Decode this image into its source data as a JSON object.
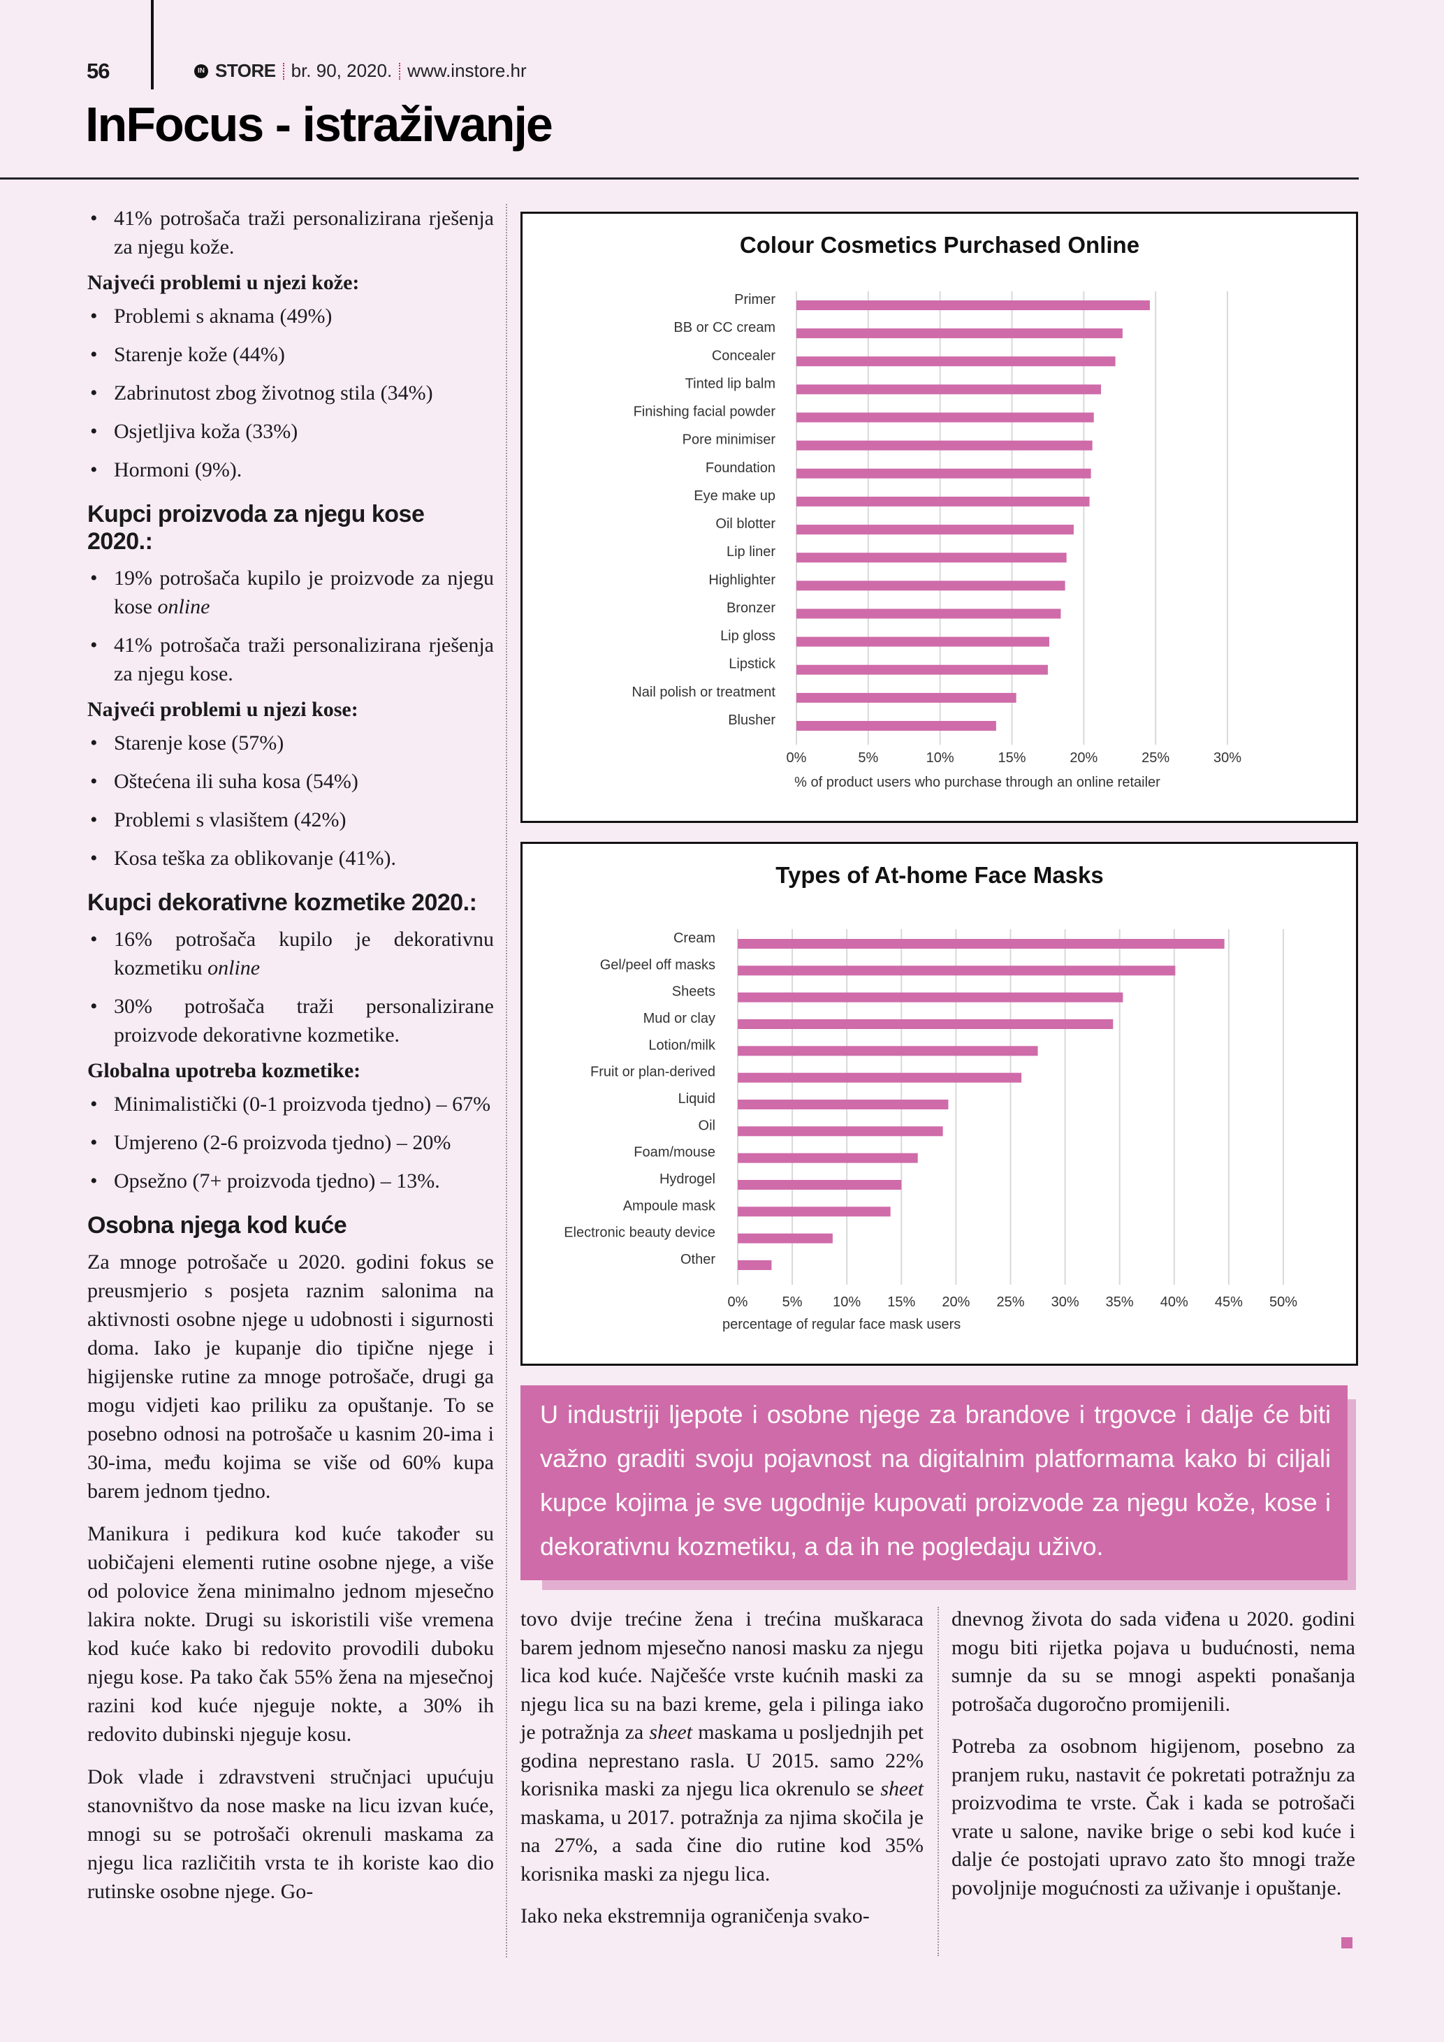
{
  "header": {
    "page_number": "56",
    "logo_mark": "IN",
    "logo_text": "STORE",
    "issue": "br. 90, 2020.",
    "website": "www.instore.hr",
    "title": "InFocus - istraživanje"
  },
  "left_column": {
    "intro_bullets": [
      "41% potrošača traži personalizirana rješenja za njegu kože."
    ],
    "skin_problems_heading": "Najveći problemi u njezi kože:",
    "skin_problems": [
      "Problemi s aknama (49%)",
      "Starenje kože (44%)",
      "Zabrinutost zbog životnog stila (34%)",
      "Osjetljiva koža (33%)",
      "Hormoni (9%)."
    ],
    "hair_heading": "Kupci proizvoda za njegu kose 2020.:",
    "hair_bullet1_pre": "19% potrošača kupilo je proizvode za njegu kose ",
    "hair_bullet1_em": "online",
    "hair_bullet2": "41% potrošača traži personalizirana rješenja za njegu kose.",
    "hair_problems_heading": "Najveći problemi u njezi kose:",
    "hair_problems": [
      "Starenje kose (57%)",
      "Oštećena ili suha kosa (54%)",
      "Problemi s vlasištem (42%)",
      "Kosa teška za oblikovanje (41%)."
    ],
    "makeup_heading": "Kupci dekorativne kozmetike 2020.:",
    "makeup_bullet1_pre": "16% potrošača kupilo je dekorativnu kozmetiku ",
    "makeup_bullet1_em": "online",
    "makeup_bullet2": "30% potrošača traži personalizirane proizvode dekorativne kozmetike.",
    "usage_heading": "Globalna upotreba kozmetike:",
    "usage": [
      "Minimalistički (0-1 proizvoda tjedno) – 67%",
      "Umjereno (2-6 proizvoda tjedno) – 20%",
      "Opsežno (7+ proizvoda tjedno) – 13%."
    ],
    "home_care_heading": "Osobna njega kod kuće",
    "paragraphs": [
      "Za mnoge potrošače u 2020. godini fokus se preusmjerio s posjeta raznim salonima na aktivnosti osobne njege u udobnosti i sigurnosti doma. Iako je kupanje dio tipične njege i higijenske rutine za mnoge potrošače, drugi ga mogu vidjeti kao priliku za opuštanje. To se posebno odnosi na potrošače u kasnim 20-ima i 30-ima, među kojima se više od 60% kupa barem jednom tjedno.",
      "Manikura i pedikura kod kuće također su uobičajeni elementi rutine osobne njege, a više od polovice žena minimalno jednom mjesečno lakira nokte. Drugi su iskoristili više vremena kod kuće kako bi redovito provodili duboku njegu kose. Pa tako čak 55% žena na mjesečnoj razini kod kuće njeguje nokte, a 30% ih redovito dubinski njeguje kosu.",
      "Dok vlade i zdravstveni stručnjaci upućuju stanovništvo da nose maske na licu izvan kuće, mnogi su se potrošači okrenuli maskama za njegu lica različitih vrsta te ih koriste kao dio rutinske osobne njege. Go-"
    ]
  },
  "pull_quote": "U industriji ljepote i osobne njege za brandove i trgovce i dalje će biti važno graditi svoju pojavnost na digitalnim platformama kako bi ciljali kupce kojima je sve ugodnije kupovati proizvode za njegu kože, kose i dekorativnu kozmetiku, a da ih ne pogledaju uživo.",
  "bottom_col1": {
    "p1_a": "tovo dvije trećine žena i trećina muškaraca barem jednom mjesečno nanosi masku za njegu lica kod kuće. Najčešće vrste kućnih maski za njegu lica su na bazi kreme, gela i pilinga iako je potražnja za ",
    "p1_em1": "sheet",
    "p1_b": " maskama u posljednjih pet godina neprestano rasla. U 2015. samo 22% korisnika maski za njegu lica okrenulo se ",
    "p1_em2": "sheet",
    "p1_c": " maskama, u 2017. potražnja za njima skočila je na 27%, a sada čine dio rutine kod 35% korisnika maski za njegu lica.",
    "p2": "Iako neka ekstremnija ograničenja svako-"
  },
  "bottom_col2": {
    "p1": "dnevnog života do sada viđena u 2020. godini mogu biti rijetka pojava u budućnosti, nema sumnje da su se mnogi aspekti ponašanja potrošača dugoročno promijenili.",
    "p2": "Potreba za osobnom higijenom, posebno za pranjem ruku, nastavit će pokretati potražnju za proizvodima te vrste. Čak i kada se potrošači vrate u salone, navike brige o sebi kod kuće i dalje će postojati upravo zato što mnogi traže povoljnije mogućnosti za uživanje i opuštanje."
  },
  "colors": {
    "accent": "#cf6ba9",
    "background": "#f7ecf4",
    "grid": "#d9d9d9"
  },
  "chart_data": [
    {
      "type": "bar",
      "orientation": "horizontal",
      "title": "Colour Cosmetics Purchased Online",
      "xlabel": "% of product users who purchase through an online retailer",
      "ylabel": "",
      "categories": [
        "Primer",
        "BB or CC cream",
        "Concealer",
        "Tinted lip balm",
        "Finishing facial powder",
        "Pore minimiser",
        "Foundation",
        "Eye make up",
        "Oil blotter",
        "Lip liner",
        "Highlighter",
        "Bronzer",
        "Lip gloss",
        "Lipstick",
        "Nail polish or treatment",
        "Blusher"
      ],
      "values": [
        24.6,
        22.7,
        22.2,
        21.2,
        20.7,
        20.6,
        20.5,
        20.4,
        19.3,
        18.8,
        18.7,
        18.4,
        17.6,
        17.5,
        15.3,
        13.9
      ],
      "xlim": [
        0,
        30
      ],
      "ticks": [
        "0%",
        "5%",
        "10%",
        "15%",
        "20%",
        "25%",
        "30%"
      ],
      "grid": true,
      "legend": "none"
    },
    {
      "type": "bar",
      "orientation": "horizontal",
      "title": "Types of At-home Face Masks",
      "xlabel": "percentage of regular face mask users",
      "ylabel": "",
      "categories": [
        "Cream",
        "Gel/peel off masks",
        "Sheets",
        "Mud or clay",
        "Lotion/milk",
        "Fruit or plan-derived",
        "Liquid",
        "Oil",
        "Foam/mouse",
        "Hydrogel",
        "Ampoule mask",
        "Electronic beauty device",
        "Other"
      ],
      "values": [
        44.6,
        40.1,
        35.3,
        34.4,
        27.5,
        26.0,
        19.3,
        18.8,
        16.5,
        15.0,
        14.0,
        8.7,
        3.1
      ],
      "xlim": [
        0,
        50
      ],
      "ticks": [
        "0%",
        "5%",
        "10%",
        "15%",
        "20%",
        "25%",
        "30%",
        "35%",
        "40%",
        "45%",
        "50%"
      ],
      "grid": true,
      "legend": "none"
    }
  ]
}
